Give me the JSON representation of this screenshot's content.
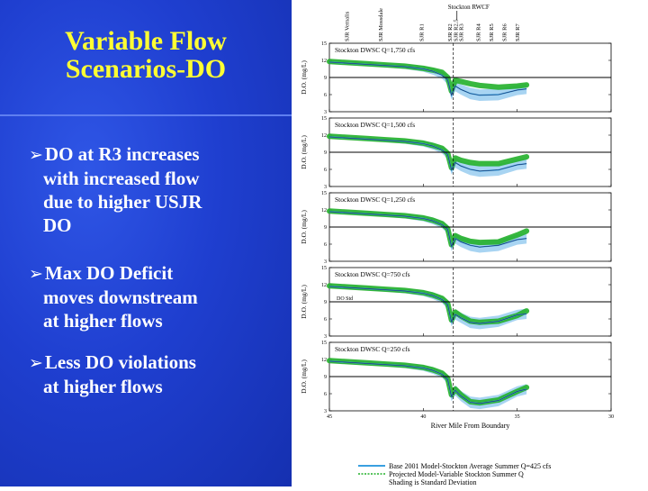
{
  "slide": {
    "title_lines": [
      "Variable Flow",
      "Scenarios-DO"
    ],
    "bullets": [
      {
        "lines": [
          "DO at R3 increases",
          "with increased flow",
          "due to higher USJR",
          "DO"
        ]
      },
      {
        "lines": [
          "Max DO Deficit",
          "moves downstream",
          "at higher flows"
        ]
      },
      {
        "lines": [
          "Less DO violations",
          "at higher flows"
        ]
      }
    ]
  },
  "colors": {
    "background": "#1f3fd0",
    "title": "#ffff33",
    "bullet_text": "#ffffff",
    "base_series": "#3aa0e0",
    "base_shade": "#a8d4f2",
    "projected_series": "#22b02a",
    "do_std_line": "#000000"
  },
  "chart_data": {
    "type": "line",
    "xlabel": "River Mile From Boundary",
    "ylabel": "D.O. (mg/L)",
    "xlim": [
      45,
      30
    ],
    "ylim": [
      3,
      15
    ],
    "x_ticks": [
      45,
      40,
      35,
      30
    ],
    "y_ticks": [
      3,
      6,
      9,
      12,
      15
    ],
    "y_tick_labels": [
      "3",
      "6",
      "9",
      "12",
      "15"
    ],
    "x_tick_labels": [
      "45",
      "40",
      "35",
      "30"
    ],
    "top_locations": [
      {
        "label": "SJR Vernalis",
        "x": 44.1
      },
      {
        "label": "SJR Mossdale",
        "x": 42.3
      },
      {
        "label": "SJR R1",
        "x": 40.1
      },
      {
        "label": "SJR R2",
        "x": 38.6
      },
      {
        "label": "SJR R2.5",
        "x": 38.3
      },
      {
        "label": "SJR R3",
        "x": 38.0
      },
      {
        "label": "SJR R4",
        "x": 37.1
      },
      {
        "label": "SJR R5",
        "x": 36.4
      },
      {
        "label": "SJR R6",
        "x": 35.7
      },
      {
        "label": "SJR R7",
        "x": 35.0
      }
    ],
    "rwcf_label": "Stockton RWCF",
    "rwcf_x": 38.4,
    "do_std_label": "DO Std",
    "x": [
      45,
      44,
      43,
      42,
      41,
      40,
      39.5,
      39,
      38.7,
      38.5,
      38.3,
      38.0,
      37.5,
      37.0,
      36.0,
      35.0,
      34.5
    ],
    "panels": [
      {
        "label": "Stockton DWSC Q=1,750 cfs",
        "do_std": 9,
        "projected": [
          11.8,
          11.6,
          11.4,
          11.2,
          11.0,
          10.6,
          10.3,
          9.9,
          9.0,
          6.6,
          8.5,
          8.3,
          7.9,
          7.6,
          7.3,
          7.5,
          7.7
        ],
        "base": [
          11.7,
          11.5,
          11.3,
          11.1,
          10.9,
          10.5,
          10.1,
          9.4,
          8.6,
          5.9,
          7.5,
          6.9,
          6.2,
          5.9,
          6.0,
          6.8,
          7.0
        ],
        "base_std": [
          0.3,
          0.3,
          0.3,
          0.3,
          0.4,
          0.5,
          0.6,
          0.6,
          0.8,
          0.8,
          0.9,
          0.9,
          1.0,
          1.0,
          1.0,
          0.9,
          0.9
        ]
      },
      {
        "label": "Stockton DWSC Q=1,500 cfs",
        "do_std": 9,
        "projected": [
          11.8,
          11.6,
          11.4,
          11.2,
          11.0,
          10.6,
          10.2,
          9.7,
          8.8,
          6.3,
          8.0,
          7.6,
          7.2,
          7.0,
          7.0,
          7.8,
          8.2
        ],
        "base": [
          11.7,
          11.5,
          11.3,
          11.1,
          10.9,
          10.5,
          10.1,
          9.4,
          8.6,
          5.9,
          7.2,
          6.6,
          6.0,
          5.7,
          5.9,
          6.8,
          7.0
        ],
        "base_std": [
          0.3,
          0.3,
          0.3,
          0.3,
          0.4,
          0.5,
          0.6,
          0.6,
          0.8,
          0.8,
          0.9,
          0.9,
          1.0,
          1.0,
          1.0,
          0.9,
          0.9
        ]
      },
      {
        "label": "Stockton DWSC Q=1,250 cfs",
        "do_std": 9,
        "projected": [
          11.8,
          11.6,
          11.4,
          11.2,
          11.0,
          10.6,
          10.2,
          9.6,
          8.7,
          5.9,
          7.5,
          7.0,
          6.5,
          6.3,
          6.4,
          7.6,
          8.3
        ],
        "base": [
          11.7,
          11.5,
          11.3,
          11.1,
          10.9,
          10.5,
          10.1,
          9.4,
          8.6,
          5.6,
          7.0,
          6.4,
          5.8,
          5.5,
          5.8,
          6.8,
          7.0
        ],
        "base_std": [
          0.3,
          0.3,
          0.3,
          0.3,
          0.4,
          0.5,
          0.6,
          0.6,
          0.8,
          0.8,
          0.9,
          0.9,
          1.0,
          1.0,
          1.0,
          0.9,
          0.9
        ]
      },
      {
        "label": "Stockton DWSC Q=750 cfs",
        "do_std": 9,
        "projected": [
          11.8,
          11.6,
          11.4,
          11.2,
          11.0,
          10.6,
          10.2,
          9.6,
          8.7,
          5.8,
          7.2,
          6.5,
          5.6,
          5.4,
          5.6,
          6.6,
          7.4
        ],
        "base": [
          11.7,
          11.5,
          11.3,
          11.1,
          10.9,
          10.5,
          10.1,
          9.4,
          8.5,
          5.5,
          6.8,
          6.2,
          5.4,
          5.2,
          5.6,
          6.7,
          6.9
        ],
        "base_std": [
          0.3,
          0.3,
          0.3,
          0.3,
          0.4,
          0.5,
          0.6,
          0.6,
          0.8,
          0.8,
          0.9,
          0.9,
          1.0,
          1.0,
          1.0,
          0.9,
          0.9
        ]
      },
      {
        "label": "Stockton DWSC Q=250 cfs",
        "do_std": 9,
        "projected": [
          11.8,
          11.6,
          11.4,
          11.2,
          11.0,
          10.6,
          10.2,
          9.6,
          8.7,
          5.8,
          6.8,
          5.8,
          4.6,
          4.4,
          4.9,
          6.4,
          7.1
        ],
        "base": [
          11.7,
          11.5,
          11.3,
          11.1,
          10.9,
          10.5,
          10.1,
          9.4,
          8.5,
          5.5,
          6.6,
          5.6,
          4.5,
          4.3,
          4.8,
          6.4,
          6.8
        ],
        "base_std": [
          0.3,
          0.3,
          0.3,
          0.3,
          0.4,
          0.5,
          0.6,
          0.6,
          0.8,
          0.8,
          0.9,
          0.9,
          1.0,
          1.0,
          1.0,
          0.9,
          0.9
        ]
      }
    ],
    "legend": {
      "base": "Base 2001 Model-Stockton Average Summer Q=425 cfs",
      "projected": "Projected Model-Variable Stockton Summer Q",
      "note": "Shading is Standard Deviation"
    }
  }
}
